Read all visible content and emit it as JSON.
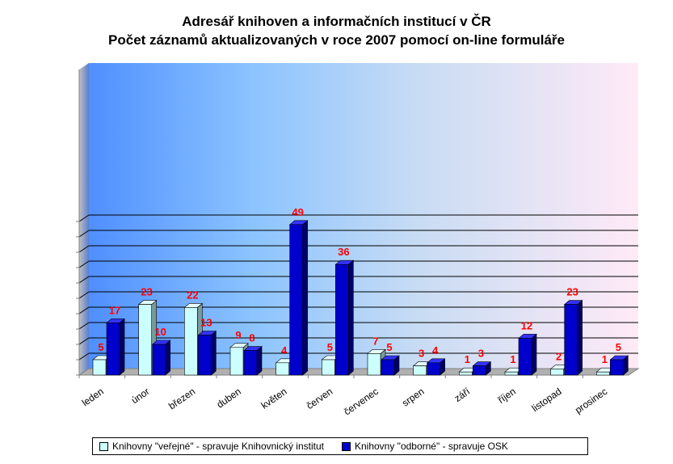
{
  "chart_data": {
    "type": "bar",
    "title": "Adresář knihoven a informačních institucí v ČR",
    "subtitle": "Počet záznamů aktualizovaných v roce 2007 pomocí on-line formuláře",
    "xlabel": "",
    "ylabel": "",
    "ylim": [
      0,
      50
    ],
    "grid": true,
    "legend": "bottom",
    "categories": [
      "leden",
      "únor",
      "březen",
      "duben",
      "květen",
      "červen",
      "červenec",
      "srpen",
      "září",
      "říjen",
      "listopad",
      "prosinec"
    ],
    "series": [
      {
        "name": "Knihovny \"veřejné\" - spravuje Knihovnický institut",
        "values": [
          5,
          23,
          22,
          9,
          4,
          5,
          7,
          3,
          1,
          1,
          2,
          1
        ]
      },
      {
        "name": "Knihovny \"odborné\" - spravuje OSK",
        "values": [
          17,
          10,
          13,
          8,
          49,
          36,
          5,
          4,
          3,
          12,
          23,
          5
        ]
      }
    ]
  },
  "colors": {
    "series1_front": "#ccffff",
    "series1_side": "#7a9a9a",
    "series1_top": "#e6ffff",
    "series2_front": "#0000cc",
    "series2_side": "#000066",
    "series2_top": "#3333ff",
    "label": "#ff0000",
    "wall_left": "#5b9bff",
    "wall_right": "#ffe8f4"
  }
}
